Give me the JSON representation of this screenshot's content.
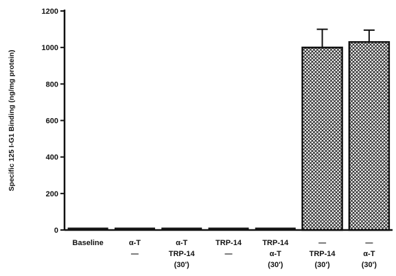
{
  "chart_data": {
    "type": "bar",
    "title": "",
    "ylabel": "Specific 125 I-G1 Binding (ng/mg protein)",
    "xlabel": "",
    "ylim": [
      0,
      1200
    ],
    "yticks": [
      0,
      200,
      400,
      600,
      800,
      1000,
      1200
    ],
    "grid": false,
    "categories": [
      [
        "Baseline"
      ],
      [
        "α-T",
        "—"
      ],
      [
        "α-T",
        "TRP-14",
        "(30')"
      ],
      [
        "TRP-14",
        "—"
      ],
      [
        "TRP-14",
        "α-T",
        "(30')"
      ],
      [
        "—",
        "TRP-14",
        "(30')"
      ],
      [
        "—",
        "α-T",
        "(30')"
      ]
    ],
    "values": [
      10,
      5,
      8,
      8,
      8,
      1000,
      1030
    ],
    "error_bars": [
      null,
      null,
      null,
      null,
      null,
      100,
      65
    ],
    "colors": {
      "low_bars": "#1a1a1a",
      "high_bar_pattern": "#222222",
      "high_bar_fill": "#ffffff"
    }
  }
}
